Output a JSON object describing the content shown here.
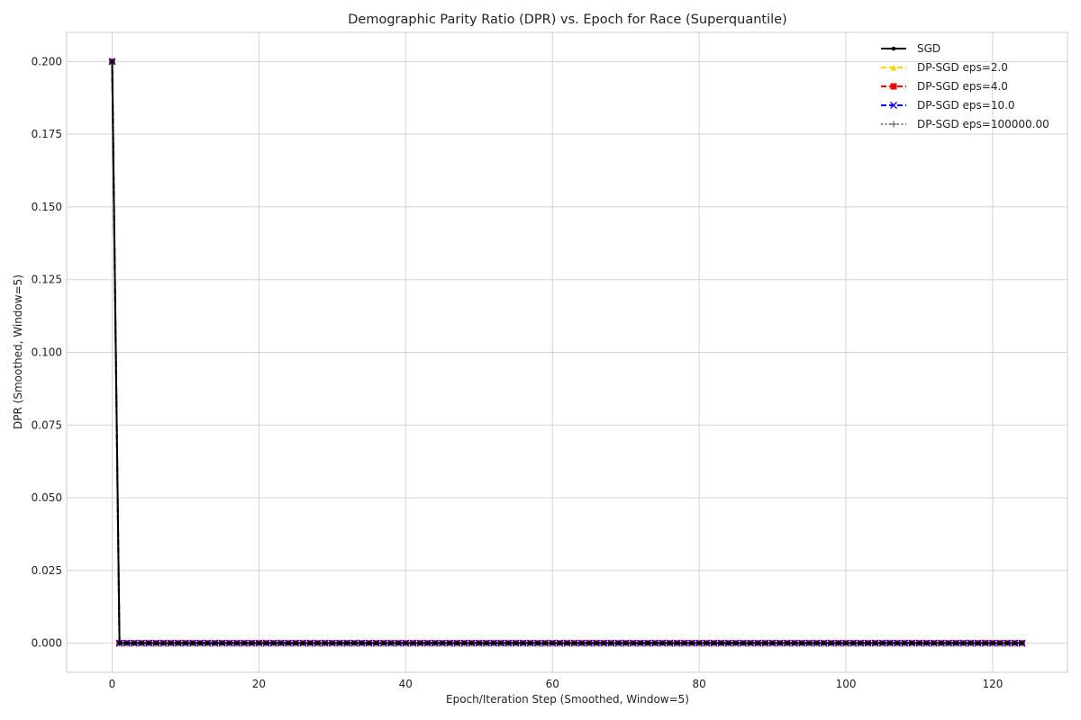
{
  "chart_data": {
    "type": "line",
    "title": "Demographic Parity Ratio (DPR) vs. Epoch for Race (Superquantile)",
    "xlabel": "Epoch/Iteration Step (Smoothed, Window=5)",
    "ylabel": "DPR (Smoothed, Window=5)",
    "xlim": [
      -6.2,
      130.2
    ],
    "ylim": [
      -0.01,
      0.21
    ],
    "x_ticks": [
      0,
      20,
      40,
      60,
      80,
      100,
      120
    ],
    "y_ticks": [
      0.0,
      0.025,
      0.05,
      0.075,
      0.1,
      0.125,
      0.15,
      0.175,
      0.2
    ],
    "y_tick_labels": [
      "0.000",
      "0.025",
      "0.050",
      "0.075",
      "0.100",
      "0.125",
      "0.150",
      "0.175",
      "0.200"
    ],
    "grid": true,
    "legend_position": "top-right",
    "x_start": 0,
    "x_end": 124,
    "series": [
      {
        "name": "SGD",
        "color": "#000000",
        "dash": "solid",
        "marker": "circle",
        "initial_value": 0.2,
        "steady_value": 0.0
      },
      {
        "name": "DP-SGD eps=2.0",
        "color": "#ffd700",
        "dash": "dashed",
        "marker": "triangle",
        "initial_value": 0.2,
        "steady_value": 0.0
      },
      {
        "name": "DP-SGD eps=4.0",
        "color": "#ff0000",
        "dash": "dashed",
        "marker": "square",
        "initial_value": 0.2,
        "steady_value": 0.0
      },
      {
        "name": "DP-SGD eps=10.0",
        "color": "#0000ff",
        "dash": "dashed",
        "marker": "x",
        "initial_value": 0.2,
        "steady_value": 0.0
      },
      {
        "name": "DP-SGD eps=100000.00",
        "color": "#808080",
        "dash": "dotted",
        "marker": "plus",
        "initial_value": 0.2,
        "steady_value": 0.0
      }
    ]
  }
}
